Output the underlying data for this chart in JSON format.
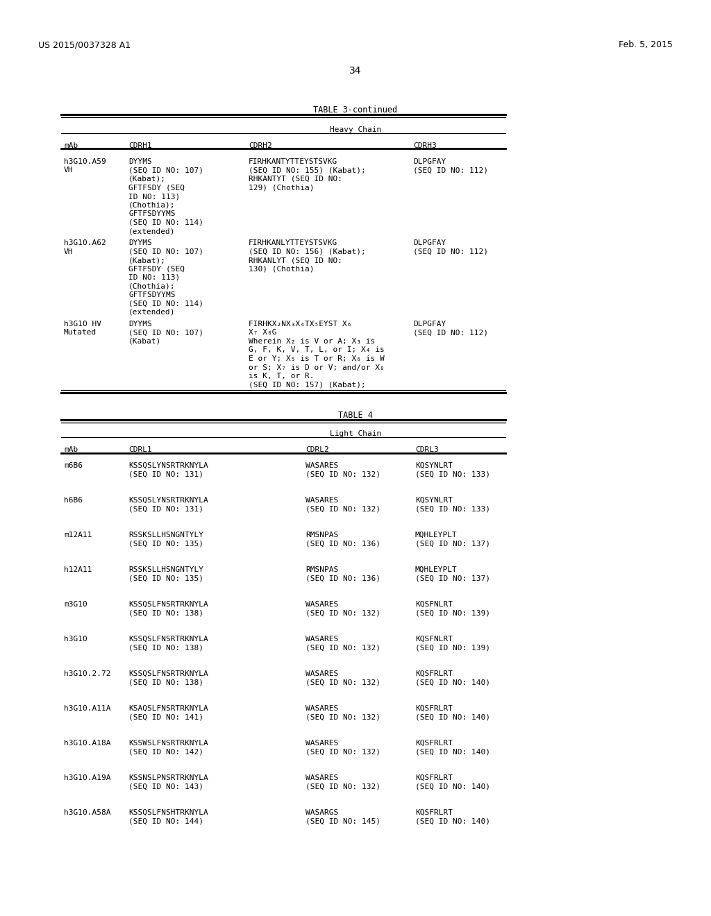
{
  "background_color": "#ffffff",
  "header_left": "US 2015/0037328 A1",
  "header_right": "Feb. 5, 2015",
  "page_number": "34",
  "table3_title": "TABLE 3-continued",
  "table3_section": "Heavy Chain",
  "table4_title": "TABLE 4",
  "table4_section": "Light Chain",
  "table3_rows": [
    {
      "mab": [
        "h3G10.A59",
        "VH"
      ],
      "cdrh1": [
        "DYYMS",
        "(SEQ ID NO: 107)",
        "(Kabat);",
        "GFTFSDY (SEQ",
        "ID NO: 113)",
        "(Chothia);",
        "GFTFSDYYMS",
        "(SEQ ID NO: 114)",
        "(extended)"
      ],
      "cdrh2": [
        "FIRHKANTYTTEYSTSVKG",
        "(SEQ ID NO: 155) (Kabat);",
        "RHKANTYT (SEQ ID NO:",
        "129) (Chothia)"
      ],
      "cdrh3": [
        "DLPGFAY",
        "(SEQ ID NO: 112)"
      ]
    },
    {
      "mab": [
        "h3G10.A62",
        "VH"
      ],
      "cdrh1": [
        "DYYMS",
        "(SEQ ID NO: 107)",
        "(Kabat);",
        "GFTFSDY (SEQ",
        "ID NO: 113)",
        "(Chothia);",
        "GFTFSDYYMS",
        "(SEQ ID NO: 114)",
        "(extended)"
      ],
      "cdrh2": [
        "FIRHKANLYTTEYSTSVKG",
        "(SEQ ID NO: 156) (Kabat);",
        "RHKANLYT (SEQ ID NO:",
        "130) (Chothia)"
      ],
      "cdrh3": [
        "DLPGFAY",
        "(SEQ ID NO: 112)"
      ]
    },
    {
      "mab": [
        "h3G10 HV",
        "Mutated"
      ],
      "cdrh1": [
        "DYYMS",
        "(SEQ ID NO: 107)",
        "(Kabat)"
      ],
      "cdrh2": [
        "FIRHKX₂NX₃X₄TX₅EYST X₆",
        "X₇ X₈G",
        "Wherein X₂ is V or A; X₃ is",
        "G, F, K, V, T, L, or I; X₄ is",
        "E or Y; X₅ is T or R; X₆ is W",
        "or S; X₇ is D or V; and/or X₈",
        "is K, T, or R.",
        "(SEQ ID NO: 157) (Kabat);"
      ],
      "cdrh3": [
        "DLPGFAY",
        "(SEQ ID NO: 112)"
      ]
    }
  ],
  "table4_rows": [
    {
      "mab": "m6B6",
      "cdrl1": [
        "KSSQSLYNSRTRKNYLA",
        "(SEQ ID NO: 131)"
      ],
      "cdrl2": [
        "WASARES",
        "(SEQ ID NO: 132)"
      ],
      "cdrl3": [
        "KQSYNLRT",
        "(SEQ ID NO: 133)"
      ]
    },
    {
      "mab": "h6B6",
      "cdrl1": [
        "KSSQSLYNSRTRKNYLA",
        "(SEQ ID NO: 131)"
      ],
      "cdrl2": [
        "WASARES",
        "(SEQ ID NO: 132)"
      ],
      "cdrl3": [
        "KQSYNLRT",
        "(SEQ ID NO: 133)"
      ]
    },
    {
      "mab": "m12A11",
      "cdrl1": [
        "RSSKSLLHSNGNTYLY",
        "(SEQ ID NO: 135)"
      ],
      "cdrl2": [
        "RMSNPAS",
        "(SEQ ID NO: 136)"
      ],
      "cdrl3": [
        "MQHLEYPLT",
        "(SEQ ID NO: 137)"
      ]
    },
    {
      "mab": "h12A11",
      "cdrl1": [
        "RSSKSLLHSNGNTYLY",
        "(SEQ ID NO: 135)"
      ],
      "cdrl2": [
        "RMSNPAS",
        "(SEQ ID NO: 136)"
      ],
      "cdrl3": [
        "MQHLEYPLT",
        "(SEQ ID NO: 137)"
      ]
    },
    {
      "mab": "m3G10",
      "cdrl1": [
        "KSSQSLFNSRTRKNYLA",
        "(SEQ ID NO: 138)"
      ],
      "cdrl2": [
        "WASARES",
        "(SEQ ID NO: 132)"
      ],
      "cdrl3": [
        "KQSFNLRT",
        "(SEQ ID NO: 139)"
      ]
    },
    {
      "mab": "h3G10",
      "cdrl1": [
        "KSSQSLFNSRTRKNYLA",
        "(SEQ ID NO: 138)"
      ],
      "cdrl2": [
        "WASARES",
        "(SEQ ID NO: 132)"
      ],
      "cdrl3": [
        "KQSFNLRT",
        "(SEQ ID NO: 139)"
      ]
    },
    {
      "mab": "h3G10.2.72",
      "cdrl1": [
        "KSSQSLFNSRTRKNYLA",
        "(SEQ ID NO: 138)"
      ],
      "cdrl2": [
        "WASARES",
        "(SEQ ID NO: 132)"
      ],
      "cdrl3": [
        "KQSFRLRT",
        "(SEQ ID NO: 140)"
      ]
    },
    {
      "mab": "h3G10.A11A",
      "cdrl1": [
        "KSAQSLFNSRTRKNYLA",
        "(SEQ ID NO: 141)"
      ],
      "cdrl2": [
        "WASARES",
        "(SEQ ID NO: 132)"
      ],
      "cdrl3": [
        "KQSFRLRT",
        "(SEQ ID NO: 140)"
      ]
    },
    {
      "mab": "h3G10.A18A",
      "cdrl1": [
        "KSSWSLFNSRTRKNYLA",
        "(SEQ ID NO: 142)"
      ],
      "cdrl2": [
        "WASARES",
        "(SEQ ID NO: 132)"
      ],
      "cdrl3": [
        "KQSFRLRT",
        "(SEQ ID NO: 140)"
      ]
    },
    {
      "mab": "h3G10.A19A",
      "cdrl1": [
        "KSSNSLPNSRTRKNYLA",
        "(SEQ ID NO: 143)"
      ],
      "cdrl2": [
        "WASARES",
        "(SEQ ID NO: 132)"
      ],
      "cdrl3": [
        "KQSFRLRT",
        "(SEQ ID NO: 140)"
      ]
    },
    {
      "mab": "h3G10.A58A",
      "cdrl1": [
        "KSSQSLFNSHTRKNYLA",
        "(SEQ ID NO: 144)"
      ],
      "cdrl2": [
        "WASARGS",
        "(SEQ ID NO: 145)"
      ],
      "cdrl3": [
        "KQSFRLRT",
        "(SEQ ID NO: 140)"
      ]
    }
  ]
}
